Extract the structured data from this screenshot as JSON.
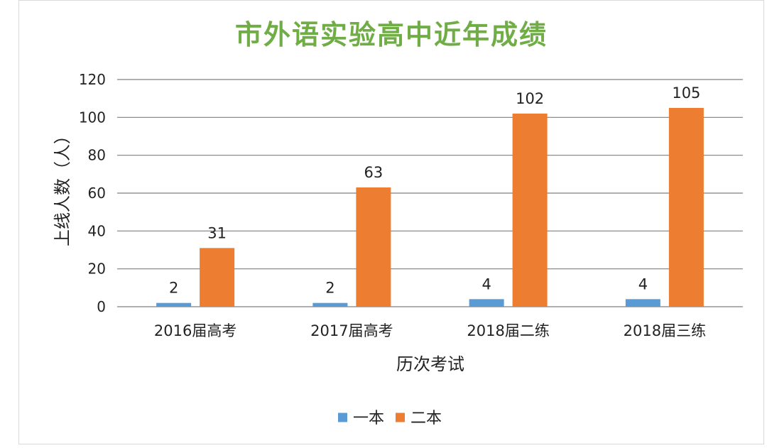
{
  "chart_data": {
    "type": "bar",
    "title": "市外语实验高中近年成绩",
    "xlabel": "历次考试",
    "ylabel": "上线人数（人）",
    "categories": [
      "2016届高考",
      "2017届高考",
      "2018届二练",
      "2018届三练"
    ],
    "series": [
      {
        "name": "一本",
        "color": "#5b9bd5",
        "values": [
          2,
          2,
          4,
          4
        ]
      },
      {
        "name": "二本",
        "color": "#ed7d31",
        "values": [
          31,
          63,
          102,
          105
        ]
      }
    ],
    "ylim": [
      0,
      120
    ],
    "yticks": [
      0,
      20,
      40,
      60,
      80,
      100,
      120
    ],
    "grid": true,
    "legend": "bottom",
    "data_labels": true
  }
}
